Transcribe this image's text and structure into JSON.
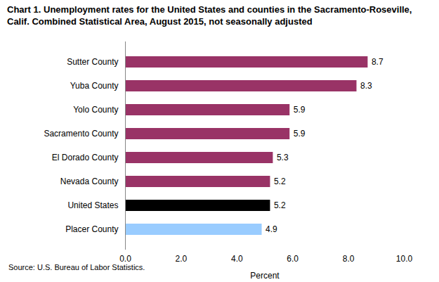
{
  "chart_data": {
    "type": "bar",
    "orientation": "horizontal",
    "title": "Chart 1. Unemployment rates for the United States and counties in the Sacramento-Roseville, Calif. Combined Statistical Area, August 2015,  not seasonally adjusted",
    "x_label": "Percent",
    "source": "Source: U.S. Bureau of Labor Statistics.",
    "categories": [
      "Sutter County",
      "Yuba County",
      "Yolo County",
      "Sacramento County",
      "El Dorado County",
      "Nevada County",
      "United States",
      "Placer County"
    ],
    "values": [
      8.7,
      8.3,
      5.9,
      5.9,
      5.3,
      5.2,
      5.2,
      4.9
    ],
    "colors": [
      "#993366",
      "#993366",
      "#993366",
      "#993366",
      "#993366",
      "#993366",
      "#000000",
      "#99ccff"
    ],
    "xlim": [
      0,
      10
    ],
    "xticks": [
      {
        "value": 0,
        "label": "0.0"
      },
      {
        "value": 2,
        "label": "2.0"
      },
      {
        "value": 4,
        "label": "4.0"
      },
      {
        "value": 6,
        "label": "6.0"
      },
      {
        "value": 8,
        "label": "8.0"
      },
      {
        "value": 10,
        "label": "10.0"
      }
    ],
    "data_labels": true,
    "grid": false
  }
}
